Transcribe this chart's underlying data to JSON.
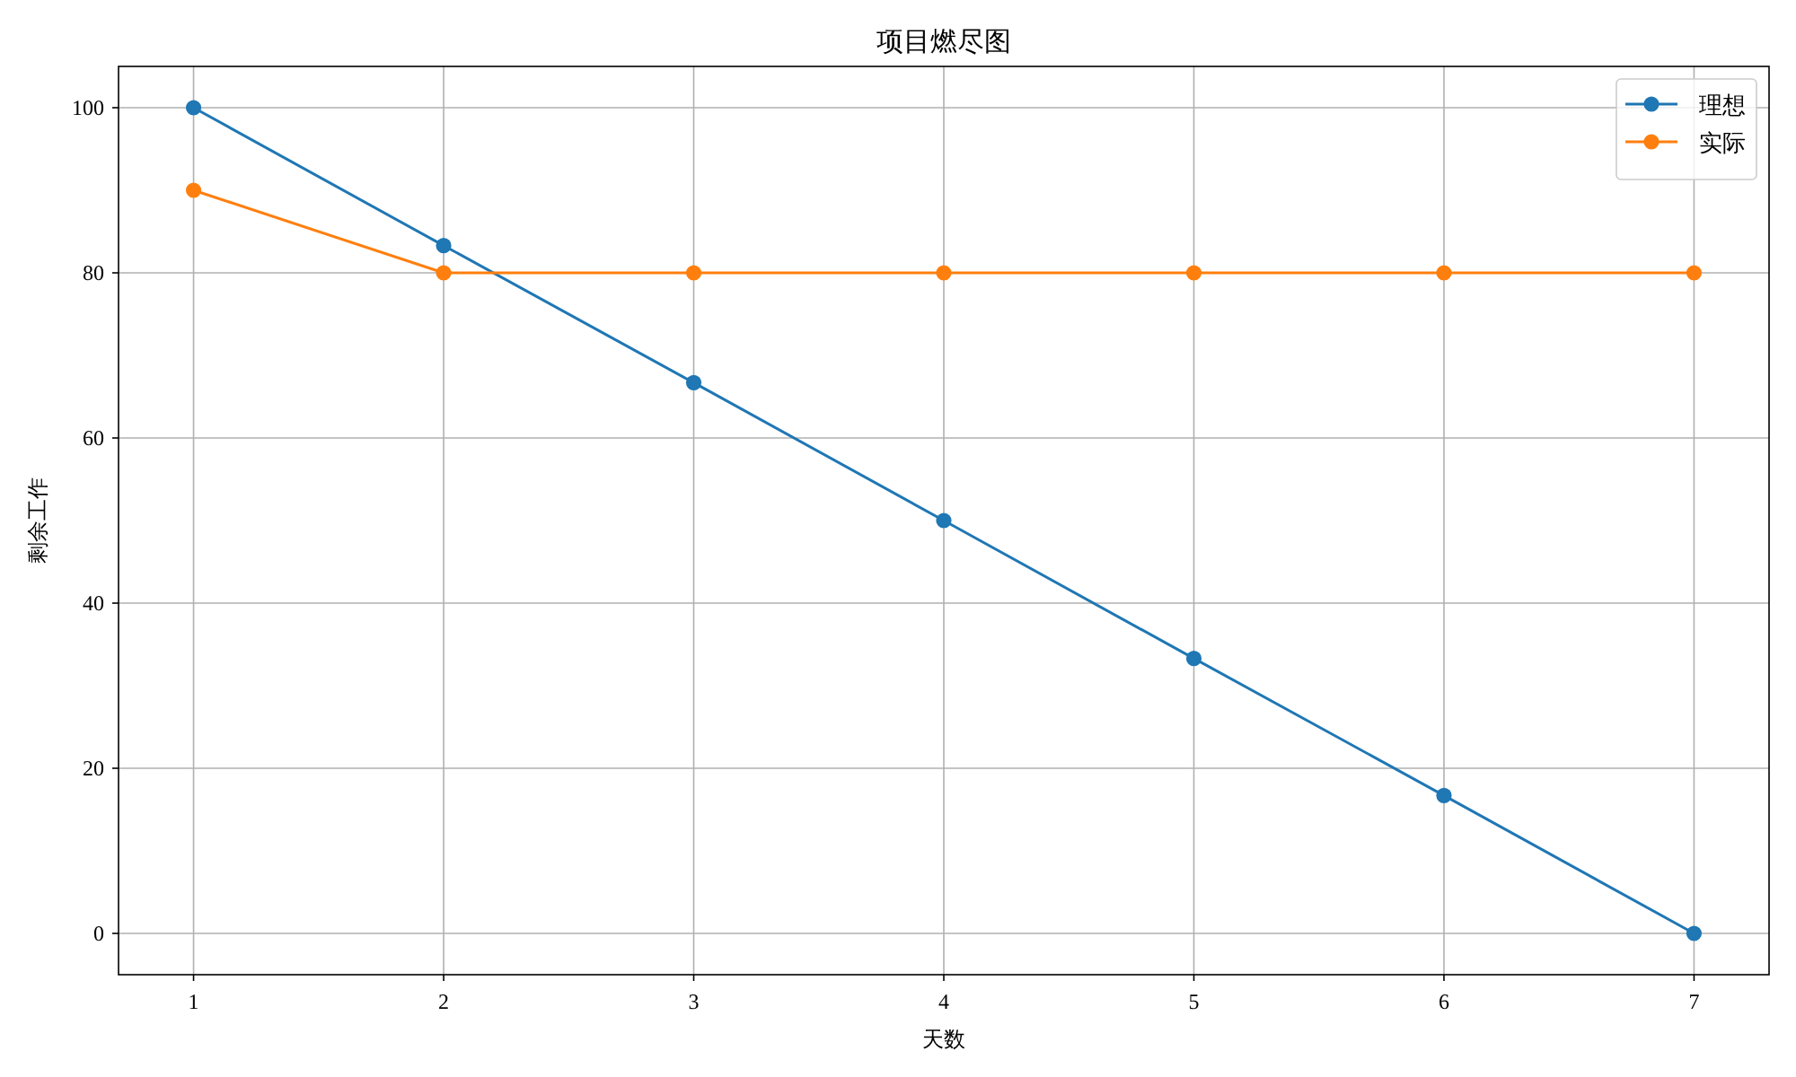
{
  "chart_data": {
    "type": "line",
    "title": "项目燃尽图",
    "xlabel": "天数",
    "ylabel": "剩余工作",
    "x": [
      1,
      2,
      3,
      4,
      5,
      6,
      7
    ],
    "series": [
      {
        "name": "理想",
        "color": "#1f77b4",
        "values": [
          100,
          83.3,
          66.7,
          50,
          33.3,
          16.7,
          0
        ]
      },
      {
        "name": "实际",
        "color": "#ff7f0e",
        "values": [
          90,
          80,
          80,
          80,
          80,
          80,
          80
        ]
      }
    ],
    "xlim": [
      0.7,
      7.3
    ],
    "ylim": [
      -5,
      105
    ],
    "xticks": [
      1,
      2,
      3,
      4,
      5,
      6,
      7
    ],
    "yticks": [
      0,
      20,
      40,
      60,
      80,
      100
    ],
    "grid": true,
    "legend": "top right",
    "marker": "circle",
    "line_style": "solid"
  }
}
